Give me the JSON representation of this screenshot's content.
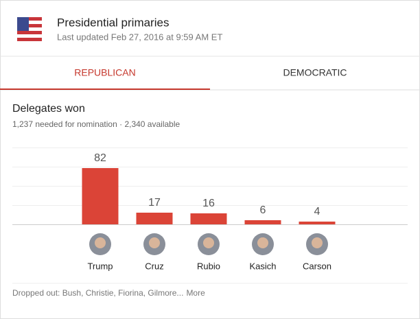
{
  "header": {
    "title": "Presidential primaries",
    "updated": "Last updated Feb 27, 2016 at 9:59 AM ET"
  },
  "tabs": [
    "REPUBLICAN",
    "DEMOCRATIC"
  ],
  "section": {
    "title": "Delegates won",
    "subtitle": "1,237 needed for nomination · 2,340 available"
  },
  "chart_data": {
    "type": "bar",
    "categories": [
      "Trump",
      "Cruz",
      "Rubio",
      "Kasich",
      "Carson"
    ],
    "values": [
      82,
      17,
      16,
      6,
      4
    ],
    "color": "#db4437",
    "ylim": [
      0,
      112
    ],
    "yticks": [
      0,
      28,
      56,
      84,
      112
    ],
    "grid": true
  },
  "footer": {
    "dropped": "Dropped out: Bush, Christie, Fiorina, Gilmore...",
    "more": "More"
  }
}
